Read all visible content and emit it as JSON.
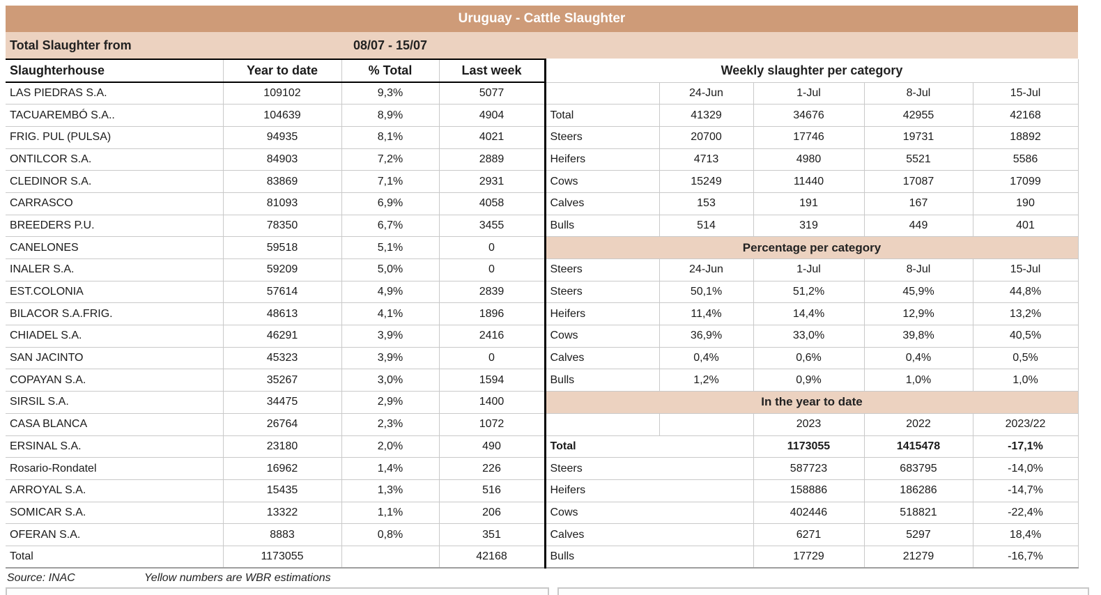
{
  "title": "Uruguay - Cattle Slaughter",
  "subheader": {
    "label": "Total Slaughter from",
    "period": "08/07 - 15/07"
  },
  "footer": {
    "source": "Source: INAC",
    "note": "Yellow numbers are WBR estimations"
  },
  "colors": {
    "title_bar": "#CE9B78",
    "band": "#ECD2C0",
    "grid_line": "#C9C9C9",
    "divider": "#000000",
    "title_text": "#FFFFFF"
  },
  "left_table": {
    "columns": [
      "Slaughterhouse",
      "Year to date",
      "% Total",
      "Last week"
    ],
    "rows": [
      {
        "name": "LAS PIEDRAS S.A.",
        "ytd": "109102",
        "pct": "9,3%",
        "last_week": "5077"
      },
      {
        "name": "TACUAREMBÓ S.A..",
        "ytd": "104639",
        "pct": "8,9%",
        "last_week": "4904"
      },
      {
        "name": "FRIG. PUL (PULSA)",
        "ytd": "94935",
        "pct": "8,1%",
        "last_week": "4021"
      },
      {
        "name": "ONTILCOR S.A.",
        "ytd": "84903",
        "pct": "7,2%",
        "last_week": "2889"
      },
      {
        "name": "CLEDINOR S.A.",
        "ytd": "83869",
        "pct": "7,1%",
        "last_week": "2931"
      },
      {
        "name": "CARRASCO",
        "ytd": "81093",
        "pct": "6,9%",
        "last_week": "4058"
      },
      {
        "name": "BREEDERS P.U.",
        "ytd": "78350",
        "pct": "6,7%",
        "last_week": "3455"
      },
      {
        "name": "CANELONES",
        "ytd": "59518",
        "pct": "5,1%",
        "last_week": "0"
      },
      {
        "name": "INALER S.A.",
        "ytd": "59209",
        "pct": "5,0%",
        "last_week": "0"
      },
      {
        "name": "EST.COLONIA",
        "ytd": "57614",
        "pct": "4,9%",
        "last_week": "2839"
      },
      {
        "name": "BILACOR S.A.FRIG.",
        "ytd": "48613",
        "pct": "4,1%",
        "last_week": "1896"
      },
      {
        "name": "CHIADEL S.A.",
        "ytd": "46291",
        "pct": "3,9%",
        "last_week": "2416"
      },
      {
        "name": "SAN JACINTO",
        "ytd": "45323",
        "pct": "3,9%",
        "last_week": "0"
      },
      {
        "name": "COPAYAN S.A.",
        "ytd": "35267",
        "pct": "3,0%",
        "last_week": "1594"
      },
      {
        "name": "SIRSIL S.A.",
        "ytd": "34475",
        "pct": "2,9%",
        "last_week": "1400"
      },
      {
        "name": "CASA BLANCA",
        "ytd": "26764",
        "pct": "2,3%",
        "last_week": "1072"
      },
      {
        "name": "ERSINAL S.A.",
        "ytd": "23180",
        "pct": "2,0%",
        "last_week": "490"
      },
      {
        "name": "Rosario-Rondatel",
        "ytd": "16962",
        "pct": "1,4%",
        "last_week": "226"
      },
      {
        "name": "ARROYAL S.A.",
        "ytd": "15435",
        "pct": "1,3%",
        "last_week": "516"
      },
      {
        "name": "SOMICAR S.A.",
        "ytd": "13322",
        "pct": "1,1%",
        "last_week": "206"
      },
      {
        "name": "OFERAN S.A.",
        "ytd": "8883",
        "pct": "0,8%",
        "last_week": "351"
      },
      {
        "name": "Total",
        "ytd": "1173055",
        "pct": "",
        "last_week": "42168"
      }
    ]
  },
  "right_table": {
    "weekly": {
      "header": "Weekly slaughter per category",
      "dates": [
        "24-Jun",
        "1-Jul",
        "8-Jul",
        "15-Jul"
      ],
      "rows": [
        {
          "label": "Total",
          "values": [
            "41329",
            "34676",
            "42955",
            "42168"
          ]
        },
        {
          "label": "Steers",
          "values": [
            "20700",
            "17746",
            "19731",
            "18892"
          ]
        },
        {
          "label": "Heifers",
          "values": [
            "4713",
            "4980",
            "5521",
            "5586"
          ]
        },
        {
          "label": "Cows",
          "values": [
            "15249",
            "11440",
            "17087",
            "17099"
          ]
        },
        {
          "label": "Calves",
          "values": [
            "153",
            "191",
            "167",
            "190"
          ]
        },
        {
          "label": "Bulls",
          "values": [
            "514",
            "319",
            "449",
            "401"
          ]
        }
      ]
    },
    "percentage": {
      "header": "Percentage per category",
      "header_row": {
        "label": "Steers",
        "dates": [
          "24-Jun",
          "1-Jul",
          "8-Jul",
          "15-Jul"
        ]
      },
      "rows": [
        {
          "label": "Steers",
          "values": [
            "50,1%",
            "51,2%",
            "45,9%",
            "44,8%"
          ]
        },
        {
          "label": "Heifers",
          "values": [
            "11,4%",
            "14,4%",
            "12,9%",
            "13,2%"
          ]
        },
        {
          "label": "Cows",
          "values": [
            "36,9%",
            "33,0%",
            "39,8%",
            "40,5%"
          ]
        },
        {
          "label": "Calves",
          "values": [
            "0,4%",
            "0,6%",
            "0,4%",
            "0,5%"
          ]
        },
        {
          "label": "Bulls",
          "values": [
            "1,2%",
            "0,9%",
            "1,0%",
            "1,0%"
          ]
        }
      ]
    },
    "ytd": {
      "header": "In the year to date",
      "years": [
        "2023",
        "2022",
        "2023/22"
      ],
      "rows": [
        {
          "label": "Total",
          "values": [
            "1173055",
            "1415478",
            "-17,1%"
          ],
          "emphasis": true
        },
        {
          "label": "Steers",
          "values": [
            "587723",
            "683795",
            "-14,0%"
          ],
          "emphasis": false
        },
        {
          "label": "Heifers",
          "values": [
            "158886",
            "186286",
            "-14,7%"
          ],
          "emphasis": false
        },
        {
          "label": "Cows",
          "values": [
            "402446",
            "518821",
            "-22,4%"
          ],
          "emphasis": false
        },
        {
          "label": "Calves",
          "values": [
            "6271",
            "5297",
            "18,4%"
          ],
          "emphasis": false
        },
        {
          "label": "Bulls",
          "values": [
            "17729",
            "21279",
            "-16,7%"
          ],
          "emphasis": false
        }
      ]
    }
  }
}
